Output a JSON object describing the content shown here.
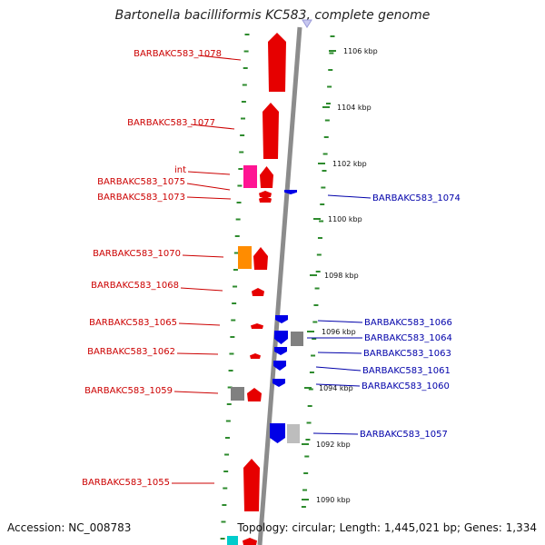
{
  "title": "Bartonella bacilliformis KC583, complete genome",
  "footer": {
    "accession": "Accession: NC_008783",
    "summary": "Topology: circular; Length: 1,445,021 bp; Genes: 1,334"
  },
  "colors": {
    "background": "#ffffff",
    "backbone": "#8c8c8c",
    "tick": "#2e8b2e",
    "forward_gene": "#e60000",
    "reverse_gene": "#0000e6",
    "orange_gene": "#ff8c00",
    "pink_gene": "#ff1493",
    "gray_gene": "#808080",
    "lightgray_gene": "#bdbdbd",
    "cyan_gene": "#00cccc",
    "label_left": "#cc0000",
    "label_right": "#0000aa"
  },
  "ticks": [
    "1106 kbp",
    "1104 kbp",
    "1102 kbp",
    "1100 kbp",
    "1098 kbp",
    "1096 kbp",
    "1094 kbp",
    "1092 kbp",
    "1090 kbp"
  ],
  "genes_left": [
    {
      "label": "BARBAKC583_1078",
      "kind": "forward"
    },
    {
      "label": "BARBAKC583_1077",
      "kind": "forward"
    },
    {
      "label": "int",
      "kind": "pink"
    },
    {
      "label": "BARBAKC583_1075",
      "kind": "forward"
    },
    {
      "label": "BARBAKC583_1073",
      "kind": "forward"
    },
    {
      "label": "BARBAKC583_1070",
      "kind": "forward"
    },
    {
      "label": "BARBAKC583_1068",
      "kind": "forward"
    },
    {
      "label": "BARBAKC583_1065",
      "kind": "forward"
    },
    {
      "label": "BARBAKC583_1062",
      "kind": "forward"
    },
    {
      "label": "BARBAKC583_1059",
      "kind": "forward"
    },
    {
      "label": "BARBAKC583_1055",
      "kind": "forward"
    }
  ],
  "genes_right": [
    {
      "label": "BARBAKC583_1074",
      "kind": "reverse"
    },
    {
      "label": "BARBAKC583_1066",
      "kind": "reverse"
    },
    {
      "label": "BARBAKC583_1064",
      "kind": "reverse"
    },
    {
      "label": "BARBAKC583_1063",
      "kind": "reverse"
    },
    {
      "label": "BARBAKC583_1061",
      "kind": "reverse"
    },
    {
      "label": "BARBAKC583_1060",
      "kind": "reverse"
    },
    {
      "label": "BARBAKC583_1057",
      "kind": "reverse"
    }
  ]
}
